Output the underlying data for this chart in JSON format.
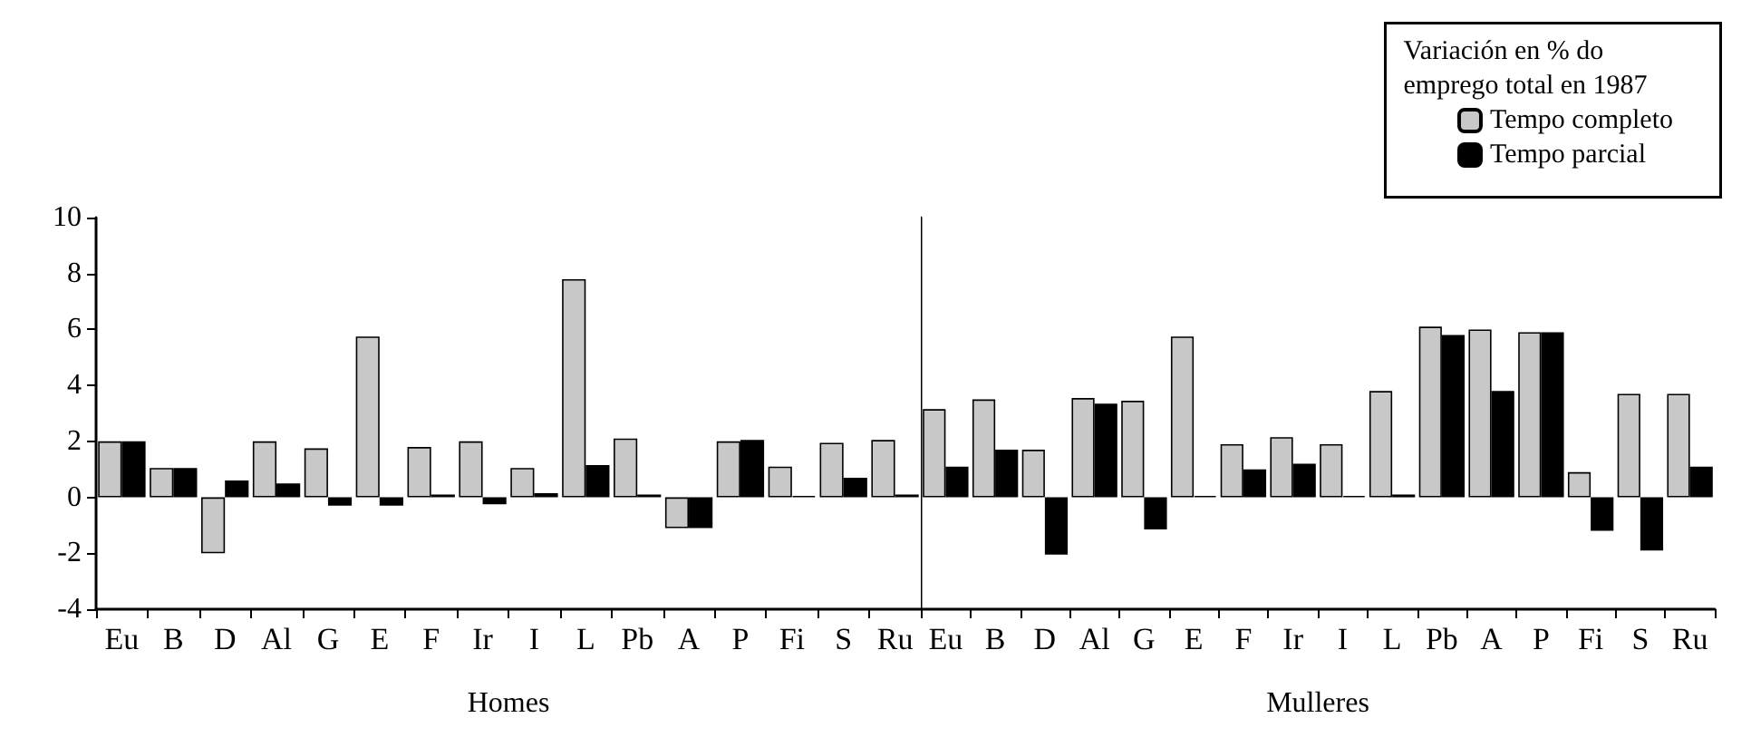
{
  "chart_data": [
    {
      "type": "bar",
      "xlabel": "Homes",
      "categories": [
        "Eu",
        "B",
        "D",
        "Al",
        "G",
        "E",
        "F",
        "Ir",
        "I",
        "L",
        "Pb",
        "A",
        "P",
        "Fi",
        "S",
        "Ru"
      ],
      "series": [
        {
          "color": "#c8c8c8",
          "values": [
            2.0,
            1.05,
            -2.0,
            2.0,
            1.75,
            5.75,
            1.8,
            2.0,
            1.05,
            7.8,
            2.1,
            -1.1,
            2.0,
            1.1,
            1.95,
            2.05
          ]
        },
        {
          "color": "#000000",
          "values": [
            2.0,
            1.05,
            0.6,
            0.5,
            -0.3,
            -0.3,
            0.1,
            -0.25,
            0.15,
            1.15,
            0.1,
            -1.1,
            2.05,
            0.05,
            0.7,
            0.1
          ]
        }
      ],
      "ylim": [
        -4,
        10
      ],
      "yticks": [
        -4,
        -2,
        0,
        2,
        4,
        6,
        8,
        10
      ],
      "grid": false,
      "legend": false
    },
    {
      "type": "bar",
      "xlabel": "Mulleres",
      "categories": [
        "Eu",
        "B",
        "D",
        "Al",
        "G",
        "E",
        "F",
        "Ir",
        "I",
        "L",
        "Pb",
        "A",
        "P",
        "Fi",
        "S",
        "Ru"
      ],
      "series": [
        {
          "name": "Tempo completo",
          "color": "#c8c8c8",
          "values": [
            3.15,
            3.5,
            1.7,
            3.55,
            3.45,
            5.75,
            1.9,
            2.15,
            1.9,
            3.8,
            6.1,
            6.0,
            5.9,
            0.9,
            3.7,
            3.7
          ]
        },
        {
          "name": "Tempo parcial",
          "color": "#000000",
          "values": [
            1.1,
            1.7,
            -2.05,
            3.35,
            -1.15,
            0.05,
            1.0,
            1.2,
            0.05,
            0.1,
            5.8,
            3.8,
            5.9,
            -1.2,
            -1.9,
            1.1
          ]
        }
      ],
      "ylim": [
        -4,
        10
      ],
      "yticks": [
        -4,
        -2,
        0,
        2,
        4,
        6,
        8,
        10
      ],
      "grid": false,
      "tick_labels": "x",
      "legend": "top right",
      "legend_title": "Variación en % do emprego total en 1987"
    }
  ]
}
